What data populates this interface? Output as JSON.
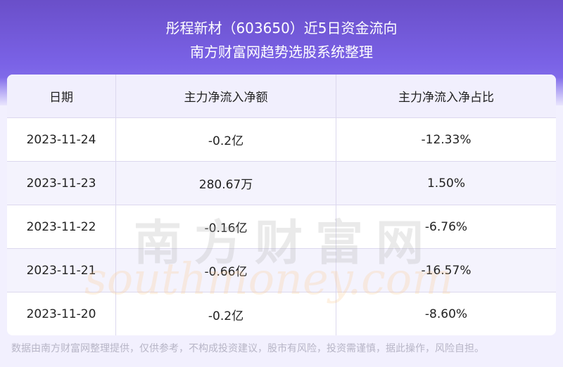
{
  "header": {
    "title": "彤程新材（603650）近5日资金流向",
    "subtitle": "南方财富网趋势选股系统整理"
  },
  "table": {
    "columns": [
      "日期",
      "主力净流入净额",
      "主力净流入净占比"
    ],
    "rows": [
      [
        "2023-11-24",
        "-0.2亿",
        "-12.33%"
      ],
      [
        "2023-11-23",
        "280.67万",
        "1.50%"
      ],
      [
        "2023-11-22",
        "-0.16亿",
        "-6.76%"
      ],
      [
        "2023-11-21",
        "-0.66亿",
        "-16.57%"
      ],
      [
        "2023-11-20",
        "-0.2亿",
        "-8.60%"
      ]
    ]
  },
  "watermark": {
    "cn": "南方财富网",
    "en": "southmoney.com"
  },
  "footer": "数据由南方财富网整理提供，仅供参考，不构成投资建议，股市有风险，投资需谨慎，据此操作，风险自担。"
}
